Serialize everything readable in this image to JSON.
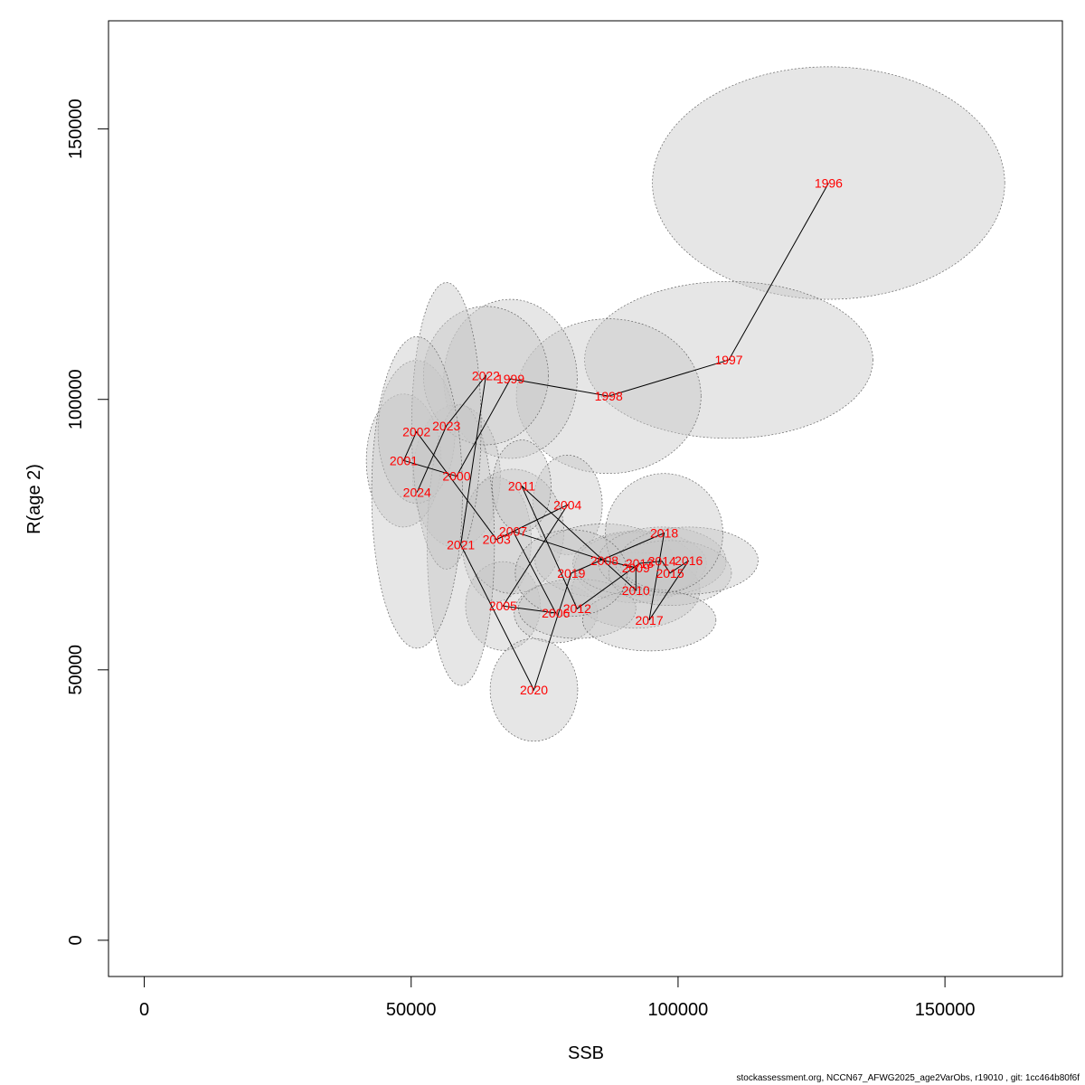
{
  "chart_data": {
    "type": "scatter",
    "title": "",
    "xlabel": "SSB",
    "ylabel": "R(age 2)",
    "xlim": [
      -6700,
      172000
    ],
    "ylim": [
      -6700,
      170000
    ],
    "xticks": [
      0,
      50000,
      100000,
      150000
    ],
    "yticks": [
      0,
      50000,
      100000,
      150000
    ],
    "grid": false,
    "label_color": "#ff0000",
    "line_color": "#000000",
    "ellipse_fill": "#c8c8c8",
    "ellipse_stroke": "#666666",
    "points": [
      {
        "year": "1996",
        "ssb": 128200,
        "rec": 140000,
        "ex": 33000,
        "ey": 21500
      },
      {
        "year": "1997",
        "ssb": 109500,
        "rec": 107300,
        "ex": 27000,
        "ey": 14500
      },
      {
        "year": "1998",
        "ssb": 87000,
        "rec": 100600,
        "ex": 17300,
        "ey": 14300
      },
      {
        "year": "1999",
        "ssb": 68600,
        "rec": 103800,
        "ex": 12500,
        "ey": 14700
      },
      {
        "year": "2000",
        "ssb": 58500,
        "rec": 85800,
        "ex": 8200,
        "ey": 13200
      },
      {
        "year": "2001",
        "ssb": 48600,
        "rec": 88700,
        "ex": 7000,
        "ey": 12300
      },
      {
        "year": "2002",
        "ssb": 51000,
        "rec": 94000,
        "ex": 7200,
        "ey": 13200
      },
      {
        "year": "2003",
        "ssb": 66000,
        "rec": 74100,
        "ex": 6500,
        "ey": 11500
      },
      {
        "year": "2004",
        "ssb": 79300,
        "rec": 80500,
        "ex": 6500,
        "ey": 9200
      },
      {
        "year": "2005",
        "ssb": 67200,
        "rec": 61800,
        "ex": 7000,
        "ey": 8200
      },
      {
        "year": "2006",
        "ssb": 77100,
        "rec": 60500,
        "ex": 7800,
        "ey": 5500
      },
      {
        "year": "2007",
        "ssb": 69100,
        "rec": 75600,
        "ex": 9500,
        "ey": 11500
      },
      {
        "year": "2008",
        "ssb": 86200,
        "rec": 70200,
        "ex": 13000,
        "ey": 6800
      },
      {
        "year": "2009",
        "ssb": 92100,
        "rec": 68900,
        "ex": 11500,
        "ey": 6500
      },
      {
        "year": "2010",
        "ssb": 92100,
        "rec": 64700,
        "ex": 12000,
        "ey": 7000
      },
      {
        "year": "2011",
        "ssb": 70700,
        "rec": 84000,
        "ex": 5500,
        "ey": 8500
      },
      {
        "year": "2012",
        "ssb": 81100,
        "rec": 61300,
        "ex": 11000,
        "ey": 5500
      },
      {
        "year": "2013",
        "ssb": 92800,
        "rec": 69700,
        "ex": 12500,
        "ey": 6000
      },
      {
        "year": "2014",
        "ssb": 97000,
        "rec": 70100,
        "ex": 12000,
        "ey": 6300
      },
      {
        "year": "2015",
        "ssb": 98500,
        "rec": 67900,
        "ex": 11500,
        "ey": 6000
      },
      {
        "year": "2016",
        "ssb": 102000,
        "rec": 70200,
        "ex": 13000,
        "ey": 6200
      },
      {
        "year": "2017",
        "ssb": 94600,
        "rec": 59200,
        "ex": 12500,
        "ey": 5700
      },
      {
        "year": "2018",
        "ssb": 97400,
        "rec": 75300,
        "ex": 11000,
        "ey": 11000
      },
      {
        "year": "2019",
        "ssb": 80000,
        "rec": 67900,
        "ex": 10500,
        "ey": 8000
      },
      {
        "year": "2020",
        "ssb": 73000,
        "rec": 46300,
        "ex": 8200,
        "ey": 9500
      },
      {
        "year": "2021",
        "ssb": 59300,
        "rec": 73100,
        "ex": 6300,
        "ey": 26000
      },
      {
        "year": "2022",
        "ssb": 64000,
        "rec": 104400,
        "ex": 11700,
        "ey": 12800
      },
      {
        "year": "2023",
        "ssb": 56600,
        "rec": 95100,
        "ex": 6500,
        "ey": 26500
      },
      {
        "year": "2024",
        "ssb": 51100,
        "rec": 82800,
        "ex": 8500,
        "ey": 28800
      }
    ]
  },
  "footer_text": "stockassessment.org, NCCN67_AFWG2025_age2VarObs, r19010 , git: 1cc464b80f6f"
}
